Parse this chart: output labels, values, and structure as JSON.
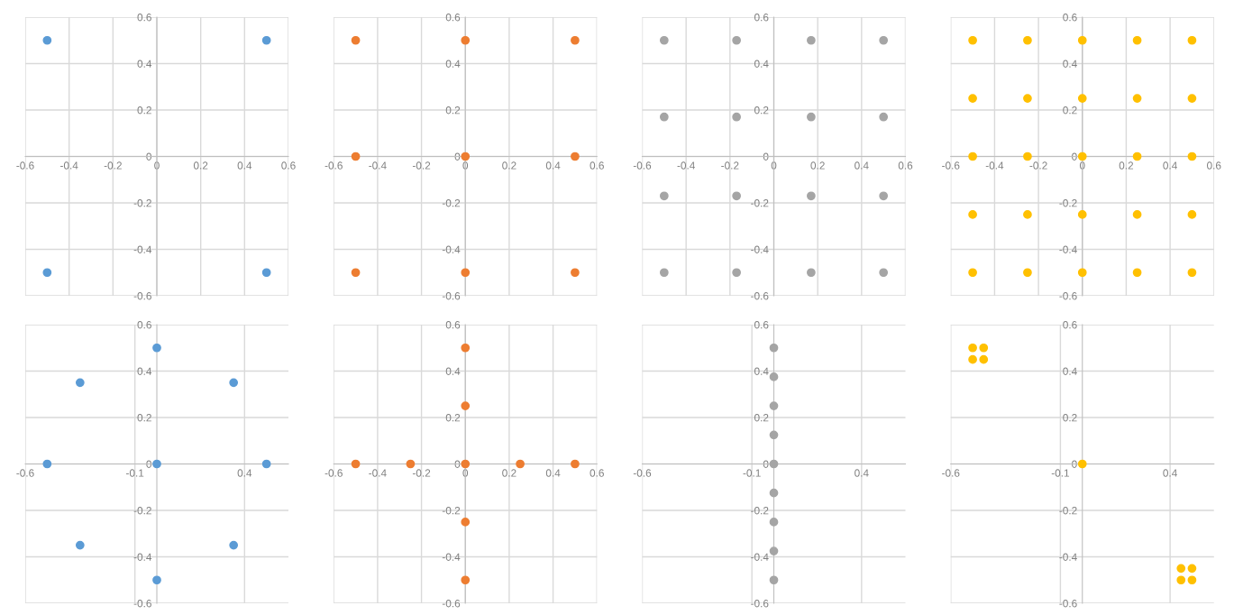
{
  "chart_data": [
    {
      "type": "scatter",
      "x": [
        -0.5,
        0.5,
        -0.5,
        0.5
      ],
      "series": [
        {
          "color": "#5b9bd5",
          "values": [
            0.5,
            0.5,
            -0.5,
            -0.5
          ]
        }
      ],
      "xlim": [
        -0.6,
        0.6
      ],
      "ylim": [
        -0.6,
        0.6
      ],
      "xticks": [
        -0.6,
        -0.4,
        -0.2,
        0,
        0.2,
        0.4,
        0.6
      ],
      "yticks": [
        -0.6,
        -0.4,
        -0.2,
        0,
        0.2,
        0.4,
        0.6
      ],
      "grid": true,
      "marker": "circle"
    },
    {
      "type": "scatter",
      "x": [
        -0.5,
        0,
        0.5,
        -0.5,
        0,
        0.5,
        -0.5,
        0,
        0.5
      ],
      "series": [
        {
          "color": "#ed7d31",
          "values": [
            0.5,
            0.5,
            0.5,
            0,
            0,
            0,
            -0.5,
            -0.5,
            -0.5
          ]
        }
      ],
      "xlim": [
        -0.6,
        0.6
      ],
      "ylim": [
        -0.6,
        0.6
      ],
      "xticks": [
        -0.6,
        -0.4,
        -0.2,
        0,
        0.2,
        0.4,
        0.6
      ],
      "yticks": [
        -0.6,
        -0.4,
        -0.2,
        0,
        0.2,
        0.4,
        0.6
      ],
      "grid": true,
      "marker": "circle"
    },
    {
      "type": "scatter",
      "x": [
        -0.5,
        -0.17,
        0.17,
        0.5,
        -0.5,
        -0.17,
        0.17,
        0.5,
        -0.5,
        -0.17,
        0.17,
        0.5,
        -0.5,
        -0.17,
        0.17,
        0.5
      ],
      "series": [
        {
          "color": "#a5a5a5",
          "values": [
            0.5,
            0.5,
            0.5,
            0.5,
            0.17,
            0.17,
            0.17,
            0.17,
            -0.17,
            -0.17,
            -0.17,
            -0.17,
            -0.5,
            -0.5,
            -0.5,
            -0.5
          ]
        }
      ],
      "xlim": [
        -0.6,
        0.6
      ],
      "ylim": [
        -0.6,
        0.6
      ],
      "xticks": [
        -0.6,
        -0.4,
        -0.2,
        0,
        0.2,
        0.4,
        0.6
      ],
      "yticks": [
        -0.6,
        -0.4,
        -0.2,
        0,
        0.2,
        0.4,
        0.6
      ],
      "grid": true,
      "marker": "circle"
    },
    {
      "type": "scatter",
      "x": [
        -0.5,
        -0.25,
        0,
        0.25,
        0.5,
        -0.5,
        -0.25,
        0,
        0.25,
        0.5,
        -0.5,
        -0.25,
        0,
        0.25,
        0.5,
        -0.5,
        -0.25,
        0,
        0.25,
        0.5,
        -0.5,
        -0.25,
        0,
        0.25,
        0.5
      ],
      "series": [
        {
          "color": "#ffc000",
          "values": [
            0.5,
            0.5,
            0.5,
            0.5,
            0.5,
            0.25,
            0.25,
            0.25,
            0.25,
            0.25,
            0,
            0,
            0,
            0,
            0,
            -0.25,
            -0.25,
            -0.25,
            -0.25,
            -0.25,
            -0.5,
            -0.5,
            -0.5,
            -0.5,
            -0.5
          ]
        }
      ],
      "xlim": [
        -0.6,
        0.6
      ],
      "ylim": [
        -0.6,
        0.6
      ],
      "xticks": [
        -0.6,
        -0.4,
        -0.2,
        0,
        0.2,
        0.4,
        0.6
      ],
      "yticks": [
        -0.6,
        -0.4,
        -0.2,
        0,
        0.2,
        0.4,
        0.6
      ],
      "grid": true,
      "marker": "circle"
    },
    {
      "type": "scatter",
      "x": [
        0,
        -0.35,
        0.35,
        -0.5,
        0,
        0.5,
        -0.35,
        0.35,
        0
      ],
      "series": [
        {
          "color": "#5b9bd5",
          "values": [
            0.5,
            0.35,
            0.35,
            0,
            0,
            0,
            -0.35,
            -0.35,
            -0.5
          ]
        }
      ],
      "xlim": [
        -0.6,
        0.6
      ],
      "ylim": [
        -0.6,
        0.6
      ],
      "xticks": [
        -0.6,
        -0.1,
        0.4
      ],
      "yticks": [
        -0.6,
        -0.4,
        -0.2,
        0,
        0.2,
        0.4,
        0.6
      ],
      "grid": true,
      "marker": "circle"
    },
    {
      "type": "scatter",
      "x": [
        0,
        0,
        -0.5,
        -0.25,
        0,
        0.25,
        0.5,
        0,
        0
      ],
      "series": [
        {
          "color": "#ed7d31",
          "values": [
            0.5,
            0.25,
            0,
            0,
            0,
            0,
            0,
            -0.25,
            -0.5
          ]
        }
      ],
      "xlim": [
        -0.6,
        0.6
      ],
      "ylim": [
        -0.6,
        0.6
      ],
      "xticks": [
        -0.6,
        -0.4,
        -0.2,
        0,
        0.2,
        0.4,
        0.6
      ],
      "yticks": [
        -0.6,
        -0.4,
        -0.2,
        0,
        0.2,
        0.4,
        0.6
      ],
      "grid": true,
      "marker": "circle"
    },
    {
      "type": "scatter",
      "x": [
        0,
        0,
        0,
        0,
        0,
        0,
        0,
        0,
        0
      ],
      "series": [
        {
          "color": "#a5a5a5",
          "values": [
            0.5,
            0.375,
            0.25,
            0.125,
            0,
            -0.125,
            -0.25,
            -0.375,
            -0.5
          ]
        }
      ],
      "xlim": [
        -0.6,
        0.6
      ],
      "ylim": [
        -0.6,
        0.6
      ],
      "xticks": [
        -0.6,
        -0.1,
        0.4
      ],
      "yticks": [
        -0.6,
        -0.4,
        -0.2,
        0,
        0.2,
        0.4,
        0.6
      ],
      "grid": true,
      "marker": "circle"
    },
    {
      "type": "scatter",
      "x": [
        -0.5,
        -0.45,
        -0.5,
        -0.45,
        0,
        0.45,
        0.5,
        0.45,
        0.5
      ],
      "series": [
        {
          "color": "#ffc000",
          "values": [
            0.5,
            0.5,
            0.45,
            0.45,
            0,
            -0.45,
            -0.45,
            -0.5,
            -0.5
          ]
        }
      ],
      "xlim": [
        -0.6,
        0.6
      ],
      "ylim": [
        -0.6,
        0.6
      ],
      "xticks": [
        -0.6,
        -0.1,
        0.4
      ],
      "yticks": [
        -0.6,
        -0.4,
        -0.2,
        0,
        0.2,
        0.4,
        0.6
      ],
      "grid": true,
      "marker": "circle"
    }
  ]
}
